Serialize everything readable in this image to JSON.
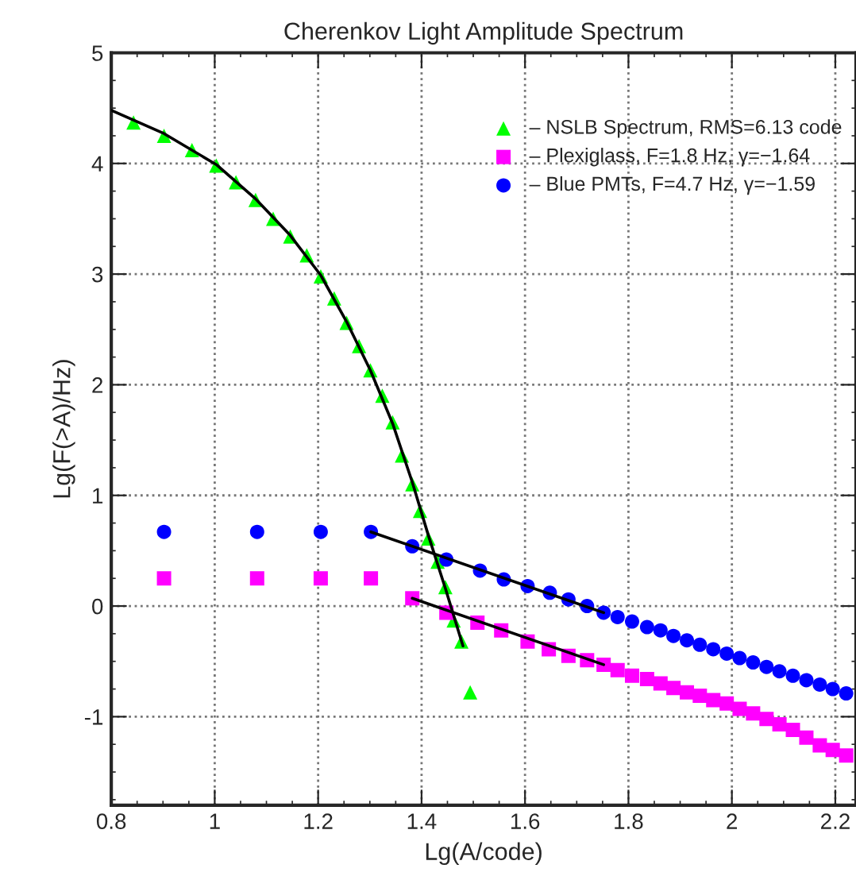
{
  "chart_data": {
    "type": "scatter",
    "title": "Cherenkov Light Amplitude Spectrum",
    "xlabel": "Lg(A/code)",
    "ylabel": "Lg(F(>A)/Hz)",
    "xlim": [
      0.8,
      2.24
    ],
    "xticks": [
      0.8,
      1,
      1.2,
      1.4,
      1.6,
      1.8,
      2,
      2.2
    ],
    "ylim": [
      -1.8,
      5
    ],
    "yticks": [
      -1,
      0,
      1,
      2,
      3,
      4,
      5
    ],
    "grid": true,
    "legend": "top right",
    "series": [
      {
        "name": "– NSLB Spectrum, RMS=6.13 code",
        "color": "#00ff00",
        "marker": "triangle",
        "x": [
          0.843,
          0.902,
          0.956,
          1.003,
          1.041,
          1.079,
          1.113,
          1.146,
          1.178,
          1.205,
          1.231,
          1.255,
          1.279,
          1.301,
          1.324,
          1.344,
          1.362,
          1.382,
          1.397,
          1.413,
          1.431,
          1.446,
          1.462,
          1.477,
          1.494
        ],
        "values": [
          4.37,
          4.25,
          4.12,
          3.98,
          3.83,
          3.67,
          3.5,
          3.34,
          3.17,
          2.98,
          2.78,
          2.56,
          2.35,
          2.13,
          1.9,
          1.66,
          1.36,
          1.1,
          0.86,
          0.61,
          0.4,
          0.17,
          -0.13,
          -0.32,
          -0.78
        ]
      },
      {
        "name": "– Plexiglass, F=1.8 Hz, γ=−1.64",
        "color": "#ff00ff",
        "marker": "square",
        "x": [
          0.902,
          1.082,
          1.205,
          1.302,
          1.382,
          1.448,
          1.508,
          1.554,
          1.605,
          1.646,
          1.684,
          1.72,
          1.752,
          1.779,
          1.807,
          1.836,
          1.862,
          1.887,
          1.913,
          1.938,
          1.964,
          1.99,
          2.015,
          2.041,
          2.067,
          2.092,
          2.118,
          2.144,
          2.17,
          2.195,
          2.221
        ],
        "values": [
          0.25,
          0.25,
          0.25,
          0.25,
          0.07,
          -0.06,
          -0.15,
          -0.22,
          -0.32,
          -0.39,
          -0.45,
          -0.49,
          -0.53,
          -0.58,
          -0.63,
          -0.66,
          -0.7,
          -0.74,
          -0.78,
          -0.81,
          -0.85,
          -0.88,
          -0.93,
          -0.97,
          -1.02,
          -1.07,
          -1.12,
          -1.19,
          -1.26,
          -1.3,
          -1.35
        ]
      },
      {
        "name": "– Blue PMTs, F=4.7 Hz, γ=−1.59",
        "color": "#0000ff",
        "marker": "circle",
        "x": [
          0.902,
          1.082,
          1.205,
          1.302,
          1.382,
          1.448,
          1.513,
          1.559,
          1.605,
          1.648,
          1.684,
          1.72,
          1.752,
          1.779,
          1.807,
          1.836,
          1.862,
          1.887,
          1.913,
          1.938,
          1.964,
          1.99,
          2.015,
          2.041,
          2.067,
          2.092,
          2.118,
          2.144,
          2.17,
          2.195,
          2.221
        ],
        "values": [
          0.67,
          0.67,
          0.67,
          0.67,
          0.54,
          0.42,
          0.32,
          0.24,
          0.18,
          0.12,
          0.06,
          0.0,
          -0.06,
          -0.1,
          -0.14,
          -0.19,
          -0.22,
          -0.27,
          -0.31,
          -0.35,
          -0.39,
          -0.43,
          -0.47,
          -0.51,
          -0.55,
          -0.59,
          -0.63,
          -0.67,
          -0.71,
          -0.75,
          -0.79
        ]
      },
      {
        "type": "line",
        "color": "#000000",
        "x": [
          0.8,
          0.902,
          1.003,
          1.079,
          1.146,
          1.205,
          1.255,
          1.301,
          1.344,
          1.382,
          1.413,
          1.446,
          1.48
        ],
        "values": [
          4.48,
          4.27,
          3.99,
          3.68,
          3.35,
          2.99,
          2.57,
          2.13,
          1.65,
          1.12,
          0.64,
          0.16,
          -0.36
        ]
      },
      {
        "type": "line",
        "color": "#000000",
        "x": [
          1.302,
          1.752
        ],
        "values": [
          0.67,
          -0.06
        ]
      },
      {
        "type": "line",
        "color": "#000000",
        "x": [
          1.382,
          1.752
        ],
        "values": [
          0.07,
          -0.53
        ]
      }
    ]
  }
}
